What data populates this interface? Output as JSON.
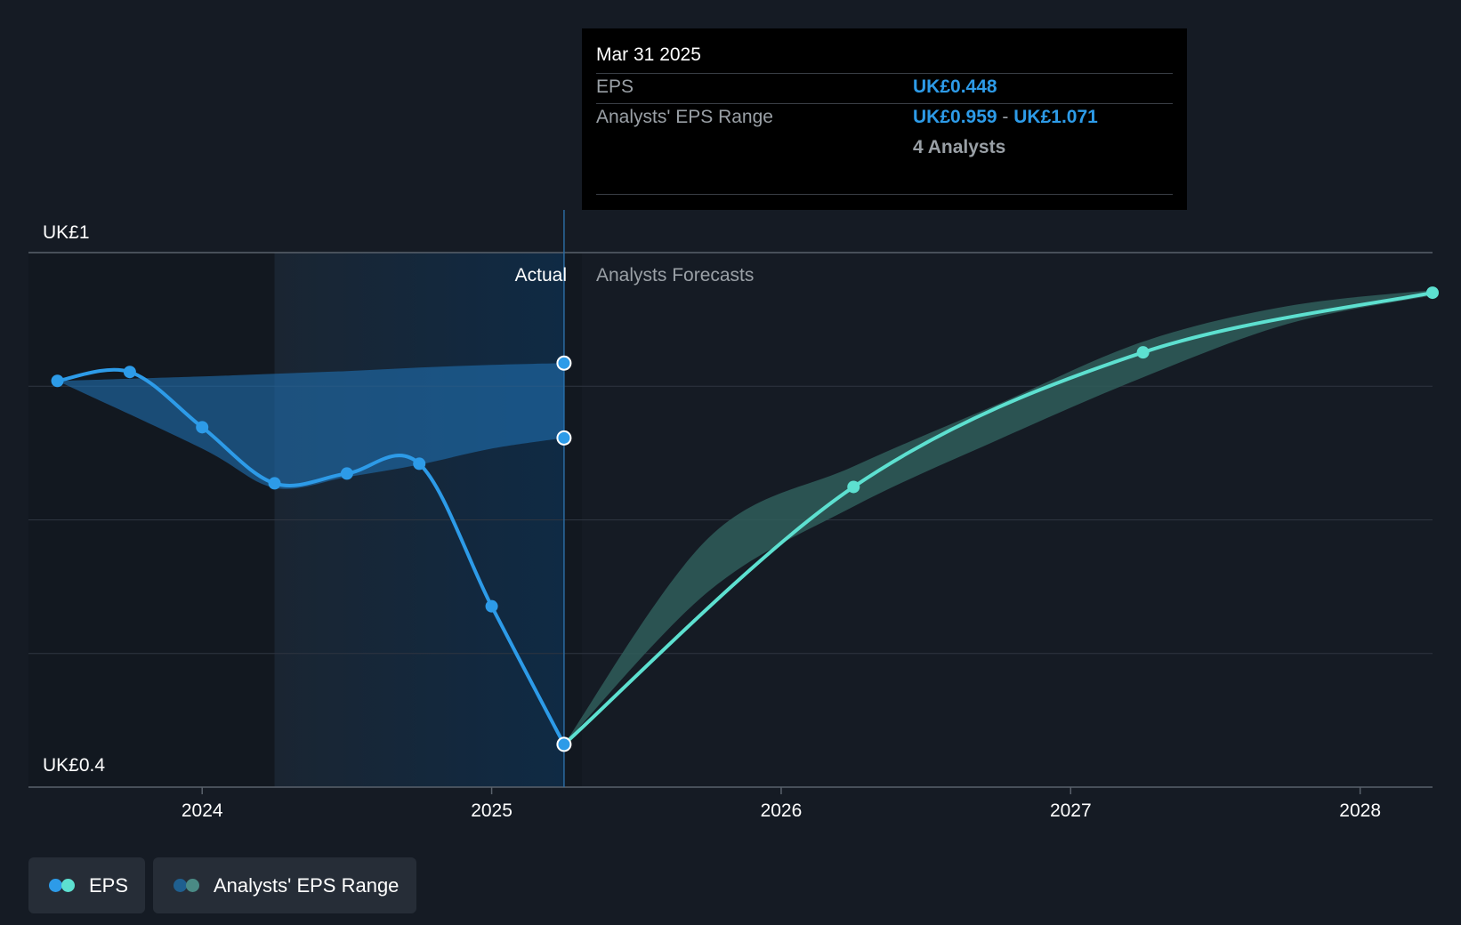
{
  "chart_data": {
    "type": "line",
    "title": "",
    "y_unit_prefix": "UK£",
    "y_axis_labels": [
      "UK£1",
      "UK£0.4"
    ],
    "ylim": [
      0.4,
      1.0
    ],
    "xlim": [
      2023.4,
      2028.25
    ],
    "x_ticks": [
      2024,
      2025,
      2026,
      2027,
      2028
    ],
    "x_tick_labels": [
      "2024",
      "2025",
      "2026",
      "2027",
      "2028"
    ],
    "divider_x": 2025.25,
    "highlight_start_x": 2024.25,
    "region_labels": {
      "actual": "Actual",
      "forecast": "Analysts Forecasts"
    },
    "series": [
      {
        "name": "EPS (Actual)",
        "color": "#2d9be8",
        "x": [
          2023.5,
          2023.75,
          2024.0,
          2024.25,
          2024.5,
          2024.75,
          2025.0,
          2025.25
        ],
        "y": [
          0.856,
          0.866,
          0.804,
          0.741,
          0.752,
          0.763,
          0.603,
          0.448
        ]
      },
      {
        "name": "EPS (Forecast)",
        "color": "#5de0d0",
        "x": [
          2025.25,
          2026.25,
          2027.25,
          2028.25
        ],
        "y": [
          0.448,
          0.737,
          0.888,
          0.955
        ]
      }
    ],
    "range_actual": {
      "name": "Analysts' EPS Range (past)",
      "color": "#1f6fb0",
      "x": [
        2023.5,
        2024.0,
        2024.25,
        2024.5,
        2024.75,
        2025.0,
        2025.25
      ],
      "low": [
        0.856,
        0.78,
        0.736,
        0.748,
        0.762,
        0.78,
        0.792
      ],
      "high": [
        0.856,
        0.861,
        0.864,
        0.867,
        0.871,
        0.874,
        0.876
      ]
    },
    "range_forecast": {
      "name": "Analysts' EPS Range",
      "color": "#2f5d5a",
      "x": [
        2025.25,
        2025.75,
        2026.25,
        2026.75,
        2027.25,
        2027.75,
        2028.25
      ],
      "low": [
        0.448,
        0.62,
        0.715,
        0.79,
        0.86,
        0.92,
        0.952
      ],
      "high": [
        0.448,
        0.68,
        0.76,
        0.83,
        0.9,
        0.94,
        0.958
      ]
    },
    "markers_hollow": [
      {
        "x": 2025.25,
        "y": 0.876
      },
      {
        "x": 2025.25,
        "y": 0.792
      },
      {
        "x": 2025.25,
        "y": 0.448
      }
    ]
  },
  "tooltip": {
    "date": "Mar 31 2025",
    "eps_label": "EPS",
    "eps_value": "UK£0.448",
    "range_label": "Analysts' EPS Range",
    "range_low": "UK£0.959",
    "range_sep": "-",
    "range_high": "UK£1.071",
    "analysts_count": "4 Analysts"
  },
  "legend": {
    "eps_label": "EPS",
    "range_label": "Analysts' EPS Range"
  },
  "colors": {
    "background": "#151b24",
    "eps_actual": "#2d9be8",
    "eps_forecast": "#5de0d0",
    "range_actual": "#1f6fb0",
    "range_forecast": "#2f5d5a"
  }
}
